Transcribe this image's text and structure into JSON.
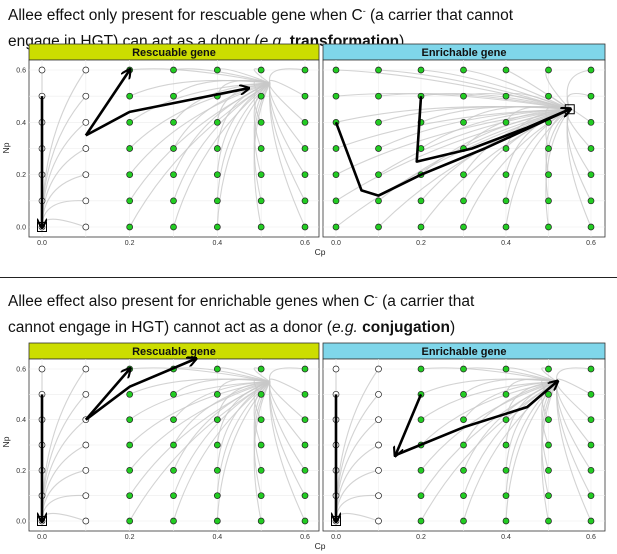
{
  "figure": {
    "top": {
      "heading_line1_pre": "Allee effect only present for rescuable gene when C",
      "heading_sup": "-",
      "heading_line1_post": " (a carrier that cannot",
      "heading_line2_pre": "engage in HGT) can act as a donor (",
      "heading_eg": "e.g.",
      "heading_bold": "transformation",
      "heading_line2_post": ")"
    },
    "bottom": {
      "heading_line1_pre": "Allee effect also present for enrichable genes when C",
      "heading_sup": "-",
      "heading_line1_post": " (a carrier that",
      "heading_line2_pre": "cannot engage in HGT) cannot act as a donor (",
      "heading_eg": "e.g.",
      "heading_bold": "conjugation",
      "heading_line2_post": ")"
    }
  },
  "colors": {
    "rescuable_strip": "#ccdd00",
    "enrichable_strip": "#7fd6ea",
    "stable_point": "#22cc22",
    "unstable_point": "#ffffff",
    "trajectory": "#c8c8c8",
    "arrow": "#000000"
  },
  "chart_data": [
    {
      "type": "scatter",
      "panel": "top-left",
      "title": "Rescuable gene",
      "xlabel": "Cp",
      "ylabel": "Np",
      "xlim": [
        0,
        0.6
      ],
      "ylim": [
        0,
        0.6
      ],
      "xticks": [
        "0.0",
        "0.2",
        "0.4",
        "0.6"
      ],
      "yticks": [
        "0.0",
        "0.2",
        "0.4",
        "0.6"
      ],
      "grid_x": [
        0,
        0.1,
        0.2,
        0.3,
        0.4,
        0.5,
        0.6
      ],
      "grid_y": [
        0,
        0.1,
        0.2,
        0.3,
        0.4,
        0.5,
        0.6
      ],
      "outcome_rule": "green when Cp >= 0.2",
      "endpoint": [
        0.0,
        0.0
      ],
      "arrows": [
        [
          [
            0.0,
            0.5
          ],
          [
            0.0,
            0.0
          ]
        ],
        [
          [
            0.1,
            0.35
          ],
          [
            0.2,
            0.6
          ]
        ],
        [
          [
            0.1,
            0.35
          ],
          [
            0.2,
            0.44
          ],
          [
            0.35,
            0.49
          ],
          [
            0.47,
            0.53
          ]
        ]
      ]
    },
    {
      "type": "scatter",
      "panel": "top-right",
      "title": "Enrichable gene",
      "xlabel": "Cp",
      "ylabel": "Np",
      "xlim": [
        0,
        0.6
      ],
      "ylim": [
        0,
        0.6
      ],
      "xticks": [
        "0.0",
        "0.2",
        "0.4",
        "0.6"
      ],
      "yticks": [
        "0.0",
        "0.2",
        "0.4",
        "0.6"
      ],
      "grid_x": [
        0,
        0.1,
        0.2,
        0.3,
        0.4,
        0.5,
        0.6
      ],
      "grid_y": [
        0,
        0.1,
        0.2,
        0.3,
        0.4,
        0.5,
        0.6
      ],
      "outcome_rule": "all green",
      "endpoint": [
        0.55,
        0.45
      ],
      "arrows": [
        [
          [
            0.0,
            0.4
          ],
          [
            0.06,
            0.14
          ],
          [
            0.1,
            0.12
          ],
          [
            0.2,
            0.2
          ],
          [
            0.35,
            0.3
          ],
          [
            0.55,
            0.45
          ]
        ],
        [
          [
            0.2,
            0.5
          ],
          [
            0.19,
            0.25
          ],
          [
            0.32,
            0.3
          ],
          [
            0.45,
            0.38
          ],
          [
            0.55,
            0.45
          ]
        ]
      ]
    },
    {
      "type": "scatter",
      "panel": "bottom-left",
      "title": "Rescuable gene",
      "xlabel": "Cp",
      "ylabel": "Np",
      "xlim": [
        0,
        0.6
      ],
      "ylim": [
        0,
        0.6
      ],
      "xticks": [
        "0.0",
        "0.2",
        "0.4",
        "0.6"
      ],
      "yticks": [
        "0.0",
        "0.2",
        "0.4",
        "0.6"
      ],
      "grid_x": [
        0,
        0.1,
        0.2,
        0.3,
        0.4,
        0.5,
        0.6
      ],
      "grid_y": [
        0,
        0.1,
        0.2,
        0.3,
        0.4,
        0.5,
        0.6
      ],
      "outcome_rule": "green when Cp >= 0.2",
      "endpoint": [
        0.0,
        0.0
      ],
      "arrows": [
        [
          [
            0.0,
            0.5
          ],
          [
            0.0,
            0.0
          ]
        ],
        [
          [
            0.1,
            0.4
          ],
          [
            0.2,
            0.6
          ]
        ],
        [
          [
            0.1,
            0.4
          ],
          [
            0.2,
            0.53
          ],
          [
            0.35,
            0.65
          ]
        ]
      ]
    },
    {
      "type": "scatter",
      "panel": "bottom-right",
      "title": "Enrichable gene",
      "xlabel": "Cp",
      "ylabel": "Np",
      "xlim": [
        0,
        0.6
      ],
      "ylim": [
        0,
        0.6
      ],
      "xticks": [
        "0.0",
        "0.2",
        "0.4",
        "0.6"
      ],
      "yticks": [
        "0.0",
        "0.2",
        "0.4",
        "0.6"
      ],
      "grid_x": [
        0,
        0.1,
        0.2,
        0.3,
        0.4,
        0.5,
        0.6
      ],
      "grid_y": [
        0,
        0.1,
        0.2,
        0.3,
        0.4,
        0.5,
        0.6
      ],
      "outcome_rule": "green when Cp >= 0.2",
      "endpoint": [
        0.0,
        0.0
      ],
      "arrows": [
        [
          [
            0.0,
            0.5
          ],
          [
            0.0,
            0.0
          ]
        ],
        [
          [
            0.2,
            0.5
          ],
          [
            0.14,
            0.26
          ]
        ],
        [
          [
            0.14,
            0.26
          ],
          [
            0.3,
            0.37
          ],
          [
            0.45,
            0.45
          ],
          [
            0.52,
            0.55
          ]
        ]
      ]
    }
  ]
}
